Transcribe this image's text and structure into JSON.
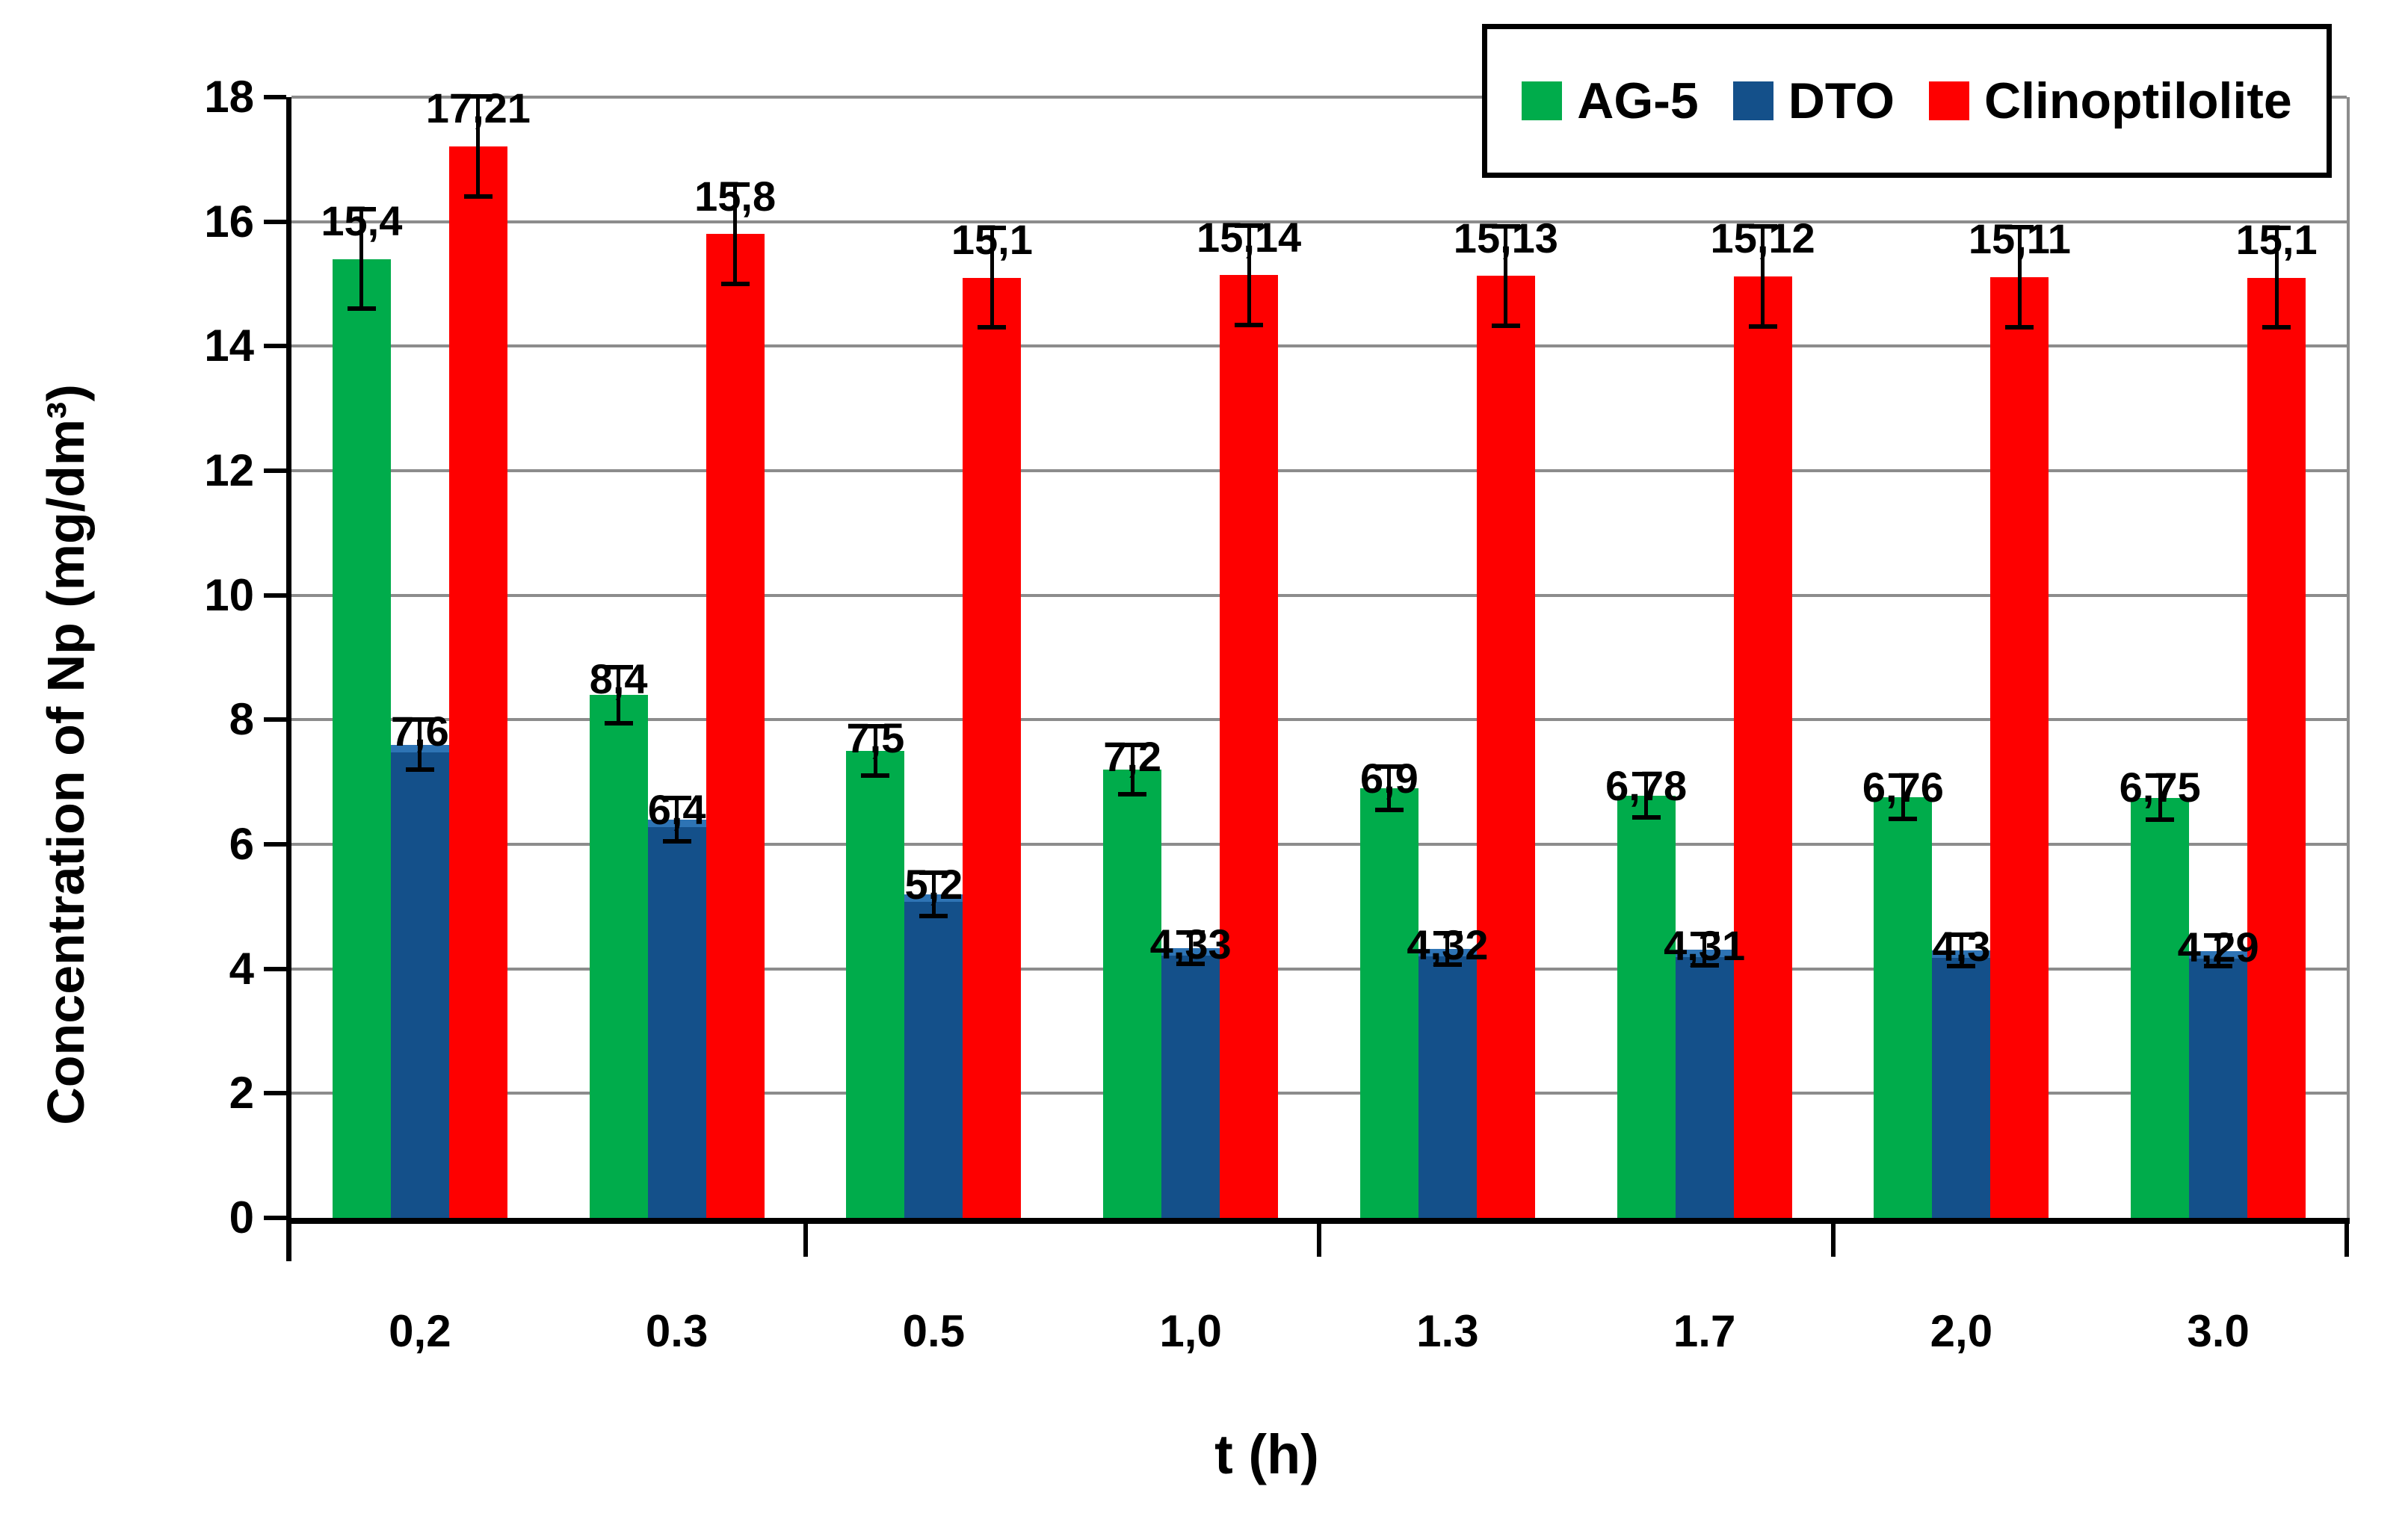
{
  "chart_data": {
    "type": "bar",
    "title": "",
    "xlabel": "t (h)",
    "ylabel": "Concentration of Np (mg/dm³)",
    "ylim": [
      0,
      18
    ],
    "ytick_step": 2,
    "yticks": [
      "0",
      "2",
      "4",
      "6",
      "8",
      "10",
      "12",
      "14",
      "16",
      "18"
    ],
    "grid": true,
    "gridline_color": "#8C8C8C",
    "axis_color": "#000000",
    "plot_right_border_color": "#8C8C8C",
    "legend_position": "top-right-inside",
    "x_tick_mark_interval": 2,
    "categories": [
      "0,2",
      "0.3",
      "0.5",
      "1,0",
      "1.3",
      "1.7",
      "2,0",
      "3.0"
    ],
    "series": [
      {
        "name": "AG-5",
        "color": "#00AC4B",
        "values": [
          15.4,
          8.4,
          7.5,
          7.2,
          6.9,
          6.78,
          6.76,
          6.75
        ],
        "labels": [
          "15,4",
          "8,4",
          "7,5",
          "7,2",
          "6,9",
          "6,78",
          "6,76",
          "6,75"
        ],
        "errors": [
          0.8,
          0.45,
          0.4,
          0.4,
          0.35,
          0.35,
          0.35,
          0.35
        ]
      },
      {
        "name": "DTO",
        "color": "#14508A",
        "top_edge_color": "#2E74B5",
        "values": [
          7.6,
          6.4,
          5.2,
          4.33,
          4.32,
          4.31,
          4.3,
          4.29
        ],
        "labels": [
          "7,6",
          "6,4",
          "5,2",
          "4,33",
          "4,32",
          "4,31",
          "4,3",
          "4,29"
        ],
        "errors": [
          0.4,
          0.35,
          0.35,
          0.25,
          0.25,
          0.25,
          0.25,
          0.25
        ]
      },
      {
        "name": "Clinoptilolite",
        "color": "#FE0000",
        "values": [
          17.21,
          15.8,
          15.1,
          15.14,
          15.13,
          15.12,
          15.11,
          15.1
        ],
        "labels": [
          "17,21",
          "15,8",
          "15,1",
          "15,14",
          "15,13",
          "15,12",
          "15,11",
          "15,1"
        ],
        "errors": [
          0.8,
          0.8,
          0.8,
          0.8,
          0.8,
          0.8,
          0.8,
          0.8
        ]
      }
    ]
  }
}
